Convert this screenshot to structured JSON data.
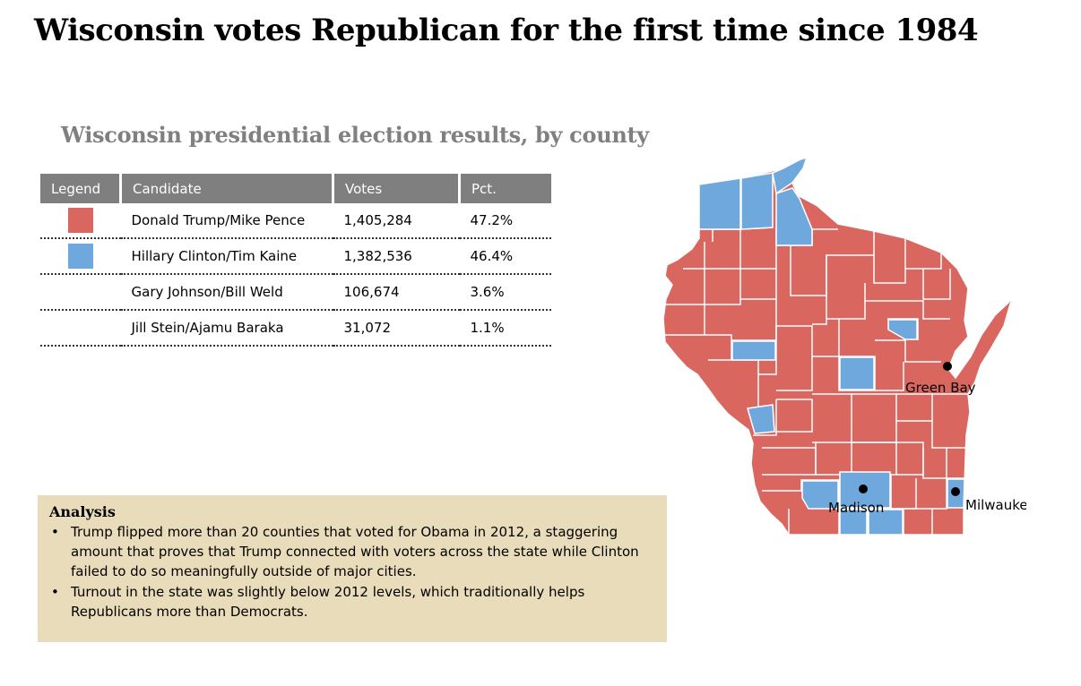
{
  "title": "Wisconsin votes Republican for the first time since 1984",
  "subtitle": "Wisconsin presidential election results, by county",
  "table": {
    "headers": [
      "Legend",
      "Candidate",
      "Votes",
      "Pct."
    ],
    "rows": [
      {
        "candidate": "Donald Trump/Mike Pence",
        "votes": "1,405,284",
        "pct": "47.2%",
        "color": "#d9675f"
      },
      {
        "candidate": "Hillary Clinton/Tim Kaine",
        "votes": "1,382,536",
        "pct": "46.4%",
        "color": "#6fa8dc"
      },
      {
        "candidate": "Gary Johnson/Bill Weld",
        "votes": "106,674",
        "pct": "3.6%",
        "color": ""
      },
      {
        "candidate": "Jill Stein/Ajamu Baraka",
        "votes": "31,072",
        "pct": "1.1%",
        "color": ""
      }
    ]
  },
  "analysis": {
    "heading": "Analysis",
    "bullets": [
      "Trump flipped more than 20 counties that voted for Obama in 2012, a staggering amount that proves that Trump connected with voters across the state while Clinton failed to do so meaningfully outside of major cities.",
      "Turnout in the state was slightly below 2012 levels, which traditionally helps Republicans more than Democrats."
    ]
  },
  "map": {
    "cities": [
      "Green Bay",
      "Madison",
      "Milwaukee"
    ],
    "colors": {
      "republican": "#d9675f",
      "democrat": "#6fa8dc",
      "border": "#ffffff"
    }
  }
}
